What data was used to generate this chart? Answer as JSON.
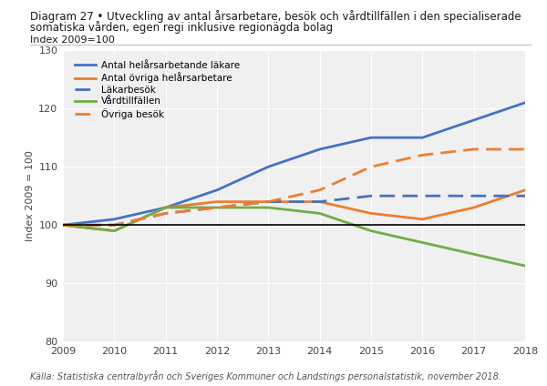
{
  "title_line1": "Diagram 27 • Utveckling av antal årsarbetare, besök och vårdtillfällen i den specialiserade",
  "title_line2": "somatiska vården, egen regi inklusive regionägda bolag",
  "subtitle": "Index 2009=100",
  "ylabel": "Index 2009 = 100",
  "source": "Källa: Statistiska centralbyrån och Sveriges Kommuner och Landstings personalstatistik, november 2018.",
  "years": [
    2009,
    2010,
    2011,
    2012,
    2013,
    2014,
    2015,
    2016,
    2017,
    2018
  ],
  "series": {
    "lakar_hel": {
      "label": "Antal helårsarbetande läkare",
      "color": "#4472C4",
      "dashed": false,
      "values": [
        100,
        101,
        103,
        106,
        110,
        113,
        115,
        115,
        118,
        121
      ]
    },
    "ovriga_hel": {
      "label": "Antal övriga helårsarbetare",
      "color": "#ED7D31",
      "dashed": false,
      "values": [
        100,
        99,
        103,
        104,
        104,
        104,
        102,
        101,
        103,
        106
      ]
    },
    "lakarbesok": {
      "label": "Läkarbesök",
      "color": "#4472C4",
      "dashed": true,
      "values": [
        100,
        100,
        102,
        103,
        104,
        104,
        105,
        105,
        105,
        105
      ]
    },
    "vardtillfallen": {
      "label": "Vårdtillfällen",
      "color": "#70AD47",
      "dashed": false,
      "values": [
        100,
        99,
        103,
        103,
        103,
        102,
        99,
        97,
        95,
        93
      ]
    },
    "ovriga_besok": {
      "label": "Övriga besök",
      "color": "#ED7D31",
      "dashed": true,
      "values": [
        100,
        100,
        102,
        103,
        104,
        106,
        110,
        112,
        113,
        113
      ]
    }
  },
  "ylim": [
    80,
    130
  ],
  "yticks": [
    80,
    90,
    100,
    110,
    120,
    130
  ],
  "xlim": [
    2009,
    2018
  ],
  "bg_color": "#F0F0F0",
  "zero_line": 100,
  "title_fontsize": 8.5,
  "subtitle_fontsize": 8,
  "tick_fontsize": 8,
  "legend_fontsize": 7.5,
  "source_fontsize": 7
}
